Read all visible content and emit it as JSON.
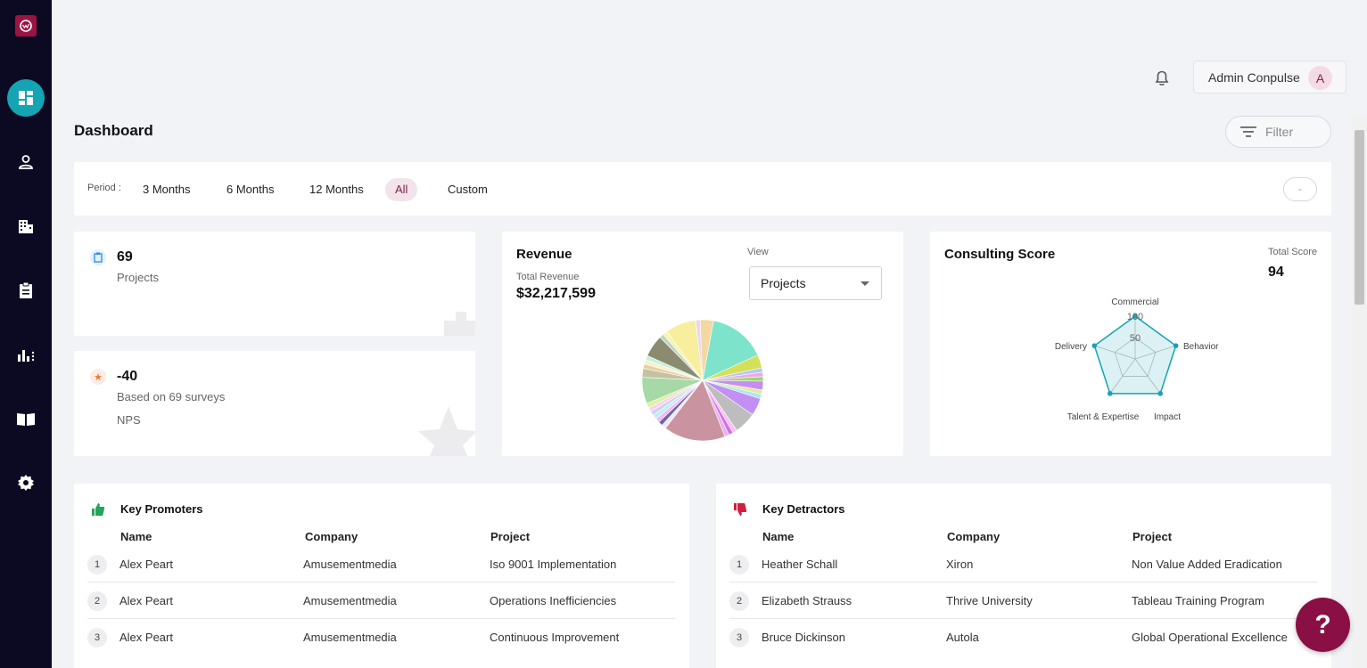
{
  "sidebar": {
    "items": [
      {
        "icon": "dashboard-icon"
      },
      {
        "icon": "user-icon"
      },
      {
        "icon": "building-icon"
      },
      {
        "icon": "clipboard-icon"
      },
      {
        "icon": "bar-chart-icon"
      },
      {
        "icon": "book-icon"
      },
      {
        "icon": "gear-icon"
      }
    ]
  },
  "header": {
    "user_name": "Admin Conpulse",
    "avatar_letter": "A"
  },
  "page_title": "Dashboard",
  "filter_label": "Filter",
  "period": {
    "label": "Period :",
    "options": [
      "3 Months",
      "6 Months",
      "12 Months",
      "All",
      "Custom"
    ],
    "selected": "All",
    "range_value": "-"
  },
  "projects_card": {
    "value": "69",
    "label": "Projects"
  },
  "nps_card": {
    "value": "-40",
    "subtitle": "Based on 69 surveys",
    "label": "NPS"
  },
  "revenue": {
    "title": "Revenue",
    "total_label": "Total Revenue",
    "total_value": "$32,217,599",
    "view_label": "View",
    "view_selected": "Projects"
  },
  "consulting": {
    "title": "Consulting Score",
    "total_label": "Total Score",
    "total_value": "94"
  },
  "chart_data": [
    {
      "type": "pie",
      "title": "",
      "values": [
        13,
        3,
        1,
        1,
        1,
        2,
        1,
        1,
        4,
        5,
        1,
        1,
        1,
        14,
        1,
        1,
        1,
        1,
        1,
        1,
        1,
        6,
        2,
        1,
        1,
        1,
        5,
        1,
        1,
        7,
        1,
        3
      ],
      "colors": [
        "#7de3cb",
        "#d4e05a",
        "#b7c8f0",
        "#f2a8e8",
        "#9ad86a",
        "#c58ef0",
        "#e6e8a0",
        "#a8e8f8",
        "#c38ff3",
        "#bdbdbd",
        "#f7c1f4",
        "#d070e6",
        "#e9b0f0",
        "#c9949f",
        "#efe7f8",
        "#6f66a8",
        "#f9b8f0",
        "#b8f0f8",
        "#d9cfe8",
        "#f5d5f0",
        "#e1f09a",
        "#a7d9a6",
        "#c5c2a2",
        "#e8cfa0",
        "#f7f3c8",
        "#c8f0e0",
        "#8b8b70",
        "#c0d6c0",
        "#f9f3b0",
        "#f7ef9e",
        "#e9d6f5",
        "#f3d8a2"
      ]
    },
    {
      "type": "radar",
      "categories": [
        "Commercial",
        "Behavior",
        "Impact",
        "Talent & Expertise",
        "Delivery"
      ],
      "values": [
        100,
        100,
        100,
        100,
        100
      ],
      "ylim": [
        0,
        100
      ],
      "ticks": [
        "50",
        "100"
      ]
    }
  ],
  "promoters": {
    "title": "Key Promoters",
    "headers": [
      "Name",
      "Company",
      "Project"
    ],
    "rows": [
      {
        "idx": "1",
        "name": "Alex Peart",
        "company": "Amusementmedia",
        "project": "Iso 9001 Implementation"
      },
      {
        "idx": "2",
        "name": "Alex Peart",
        "company": "Amusementmedia",
        "project": "Operations Inefficiencies"
      },
      {
        "idx": "3",
        "name": "Alex Peart",
        "company": "Amusementmedia",
        "project": "Continuous Improvement"
      }
    ]
  },
  "detractors": {
    "title": "Key Detractors",
    "headers": [
      "Name",
      "Company",
      "Project"
    ],
    "rows": [
      {
        "idx": "1",
        "name": "Heather Schall",
        "company": "Xiron",
        "project": "Non Value Added Eradication"
      },
      {
        "idx": "2",
        "name": "Elizabeth Strauss",
        "company": "Thrive University",
        "project": "Tableau Training Program"
      },
      {
        "idx": "3",
        "name": "Bruce Dickinson",
        "company": "Autola",
        "project": "Global Operational Excellence"
      }
    ]
  },
  "help_label": "?"
}
